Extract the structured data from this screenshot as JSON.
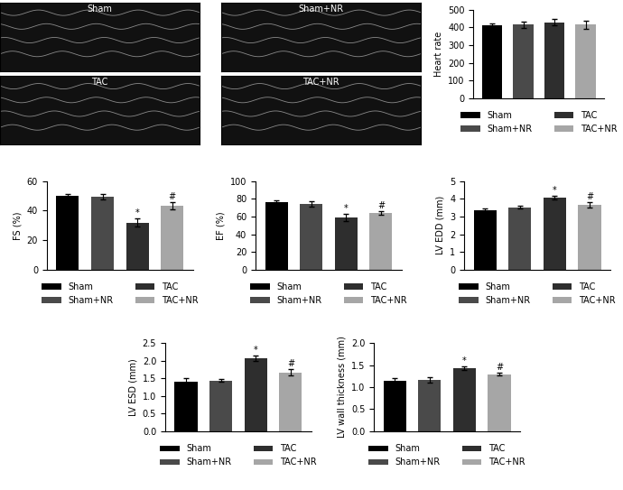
{
  "echo_panels": [
    "Sham",
    "Sham+NR",
    "TAC",
    "TAC+NR"
  ],
  "chart_data": [
    {
      "type": "bar",
      "y_label": "Heart rate",
      "ylim": [
        0,
        500
      ],
      "yticks": [
        0,
        100,
        200,
        300,
        400,
        500
      ],
      "tick_labels": "y",
      "legend": "bottom",
      "series": [
        {
          "name": "Sham",
          "color": "#000000",
          "values": [
            410
          ],
          "errors": [
            15
          ]
        },
        {
          "name": "Sham+NR",
          "color": "#4a4a4a",
          "values": [
            415
          ],
          "errors": [
            18
          ]
        },
        {
          "name": "TAC",
          "color": "#2e2e2e",
          "values": [
            430
          ],
          "errors": [
            18
          ]
        },
        {
          "name": "TAC+NR",
          "color": "#a6a6a6",
          "values": [
            415
          ],
          "errors": [
            22
          ]
        }
      ],
      "annotations": []
    },
    {
      "type": "bar",
      "y_label": "FS (%)",
      "ylim": [
        0,
        60
      ],
      "yticks": [
        0,
        20,
        40,
        60
      ],
      "tick_labels": "y",
      "legend": "bottom",
      "series": [
        {
          "name": "Sham",
          "color": "#000000",
          "values": [
            50
          ],
          "errors": [
            1.5
          ]
        },
        {
          "name": "Sham+NR",
          "color": "#4a4a4a",
          "values": [
            49.5
          ],
          "errors": [
            2
          ]
        },
        {
          "name": "TAC",
          "color": "#2e2e2e",
          "values": [
            32
          ],
          "errors": [
            2.5
          ]
        },
        {
          "name": "TAC+NR",
          "color": "#a6a6a6",
          "values": [
            43.5
          ],
          "errors": [
            2.5
          ]
        }
      ],
      "annotations": [
        {
          "series": "TAC",
          "text": "*"
        },
        {
          "series": "TAC+NR",
          "text": "#"
        }
      ]
    },
    {
      "type": "bar",
      "y_label": "EF (%)",
      "ylim": [
        0,
        100
      ],
      "yticks": [
        0,
        20,
        40,
        60,
        80,
        100
      ],
      "tick_labels": "y",
      "legend": "bottom",
      "series": [
        {
          "name": "Sham",
          "color": "#000000",
          "values": [
            76
          ],
          "errors": [
            2
          ]
        },
        {
          "name": "Sham+NR",
          "color": "#4a4a4a",
          "values": [
            74
          ],
          "errors": [
            3
          ]
        },
        {
          "name": "TAC",
          "color": "#2e2e2e",
          "values": [
            59
          ],
          "errors": [
            4
          ]
        },
        {
          "name": "TAC+NR",
          "color": "#a6a6a6",
          "values": [
            64
          ],
          "errors": [
            2
          ]
        }
      ],
      "annotations": [
        {
          "series": "TAC",
          "text": "*"
        },
        {
          "series": "TAC+NR",
          "text": "#"
        }
      ]
    },
    {
      "type": "bar",
      "y_label": "LV EDD (mm)",
      "ylim": [
        0,
        5
      ],
      "yticks": [
        0,
        1,
        2,
        3,
        4,
        5
      ],
      "tick_labels": "y",
      "legend": "bottom",
      "series": [
        {
          "name": "Sham",
          "color": "#000000",
          "values": [
            3.38
          ],
          "errors": [
            0.07
          ]
        },
        {
          "name": "Sham+NR",
          "color": "#4a4a4a",
          "values": [
            3.52
          ],
          "errors": [
            0.07
          ]
        },
        {
          "name": "TAC",
          "color": "#2e2e2e",
          "values": [
            4.08
          ],
          "errors": [
            0.12
          ]
        },
        {
          "name": "TAC+NR",
          "color": "#a6a6a6",
          "values": [
            3.65
          ],
          "errors": [
            0.15
          ]
        }
      ],
      "annotations": [
        {
          "series": "TAC",
          "text": "*"
        },
        {
          "series": "TAC+NR",
          "text": "#"
        }
      ]
    },
    {
      "type": "bar",
      "y_label": "LV ESD (mm)",
      "ylim": [
        0,
        2.5
      ],
      "yticks": [
        {
          "value": 0,
          "label": "0.0"
        },
        0.5,
        {
          "value": 1,
          "label": "1.0"
        },
        1.5,
        {
          "value": 2,
          "label": "2.0"
        },
        2.5
      ],
      "tick_labels": "y",
      "legend": "bottom",
      "series": [
        {
          "name": "Sham",
          "color": "#000000",
          "values": [
            1.4
          ],
          "errors": [
            0.1
          ]
        },
        {
          "name": "Sham+NR",
          "color": "#4a4a4a",
          "values": [
            1.43
          ],
          "errors": [
            0.04
          ]
        },
        {
          "name": "TAC",
          "color": "#2e2e2e",
          "values": [
            2.07
          ],
          "errors": [
            0.08
          ]
        },
        {
          "name": "TAC+NR",
          "color": "#a6a6a6",
          "values": [
            1.67
          ],
          "errors": [
            0.08
          ]
        }
      ],
      "annotations": [
        {
          "series": "TAC",
          "text": "*"
        },
        {
          "series": "TAC+NR",
          "text": "#"
        }
      ]
    },
    {
      "type": "bar",
      "y_label": "LV wall thickness (mm)",
      "ylim": [
        0,
        2
      ],
      "yticks": [
        {
          "value": 0,
          "label": "0.0"
        },
        0.5,
        {
          "value": 1,
          "label": "1.0"
        },
        1.5,
        {
          "value": 2,
          "label": "2.0"
        }
      ],
      "tick_labels": "y",
      "legend": "bottom",
      "series": [
        {
          "name": "Sham",
          "color": "#000000",
          "values": [
            1.15
          ],
          "errors": [
            0.06
          ]
        },
        {
          "name": "Sham+NR",
          "color": "#4a4a4a",
          "values": [
            1.17
          ],
          "errors": [
            0.06
          ]
        },
        {
          "name": "TAC",
          "color": "#2e2e2e",
          "values": [
            1.43
          ],
          "errors": [
            0.05
          ]
        },
        {
          "name": "TAC+NR",
          "color": "#a6a6a6",
          "values": [
            1.29
          ],
          "errors": [
            0.03
          ]
        }
      ],
      "annotations": [
        {
          "series": "TAC",
          "text": "*"
        },
        {
          "series": "TAC+NR",
          "text": "#"
        }
      ]
    }
  ]
}
